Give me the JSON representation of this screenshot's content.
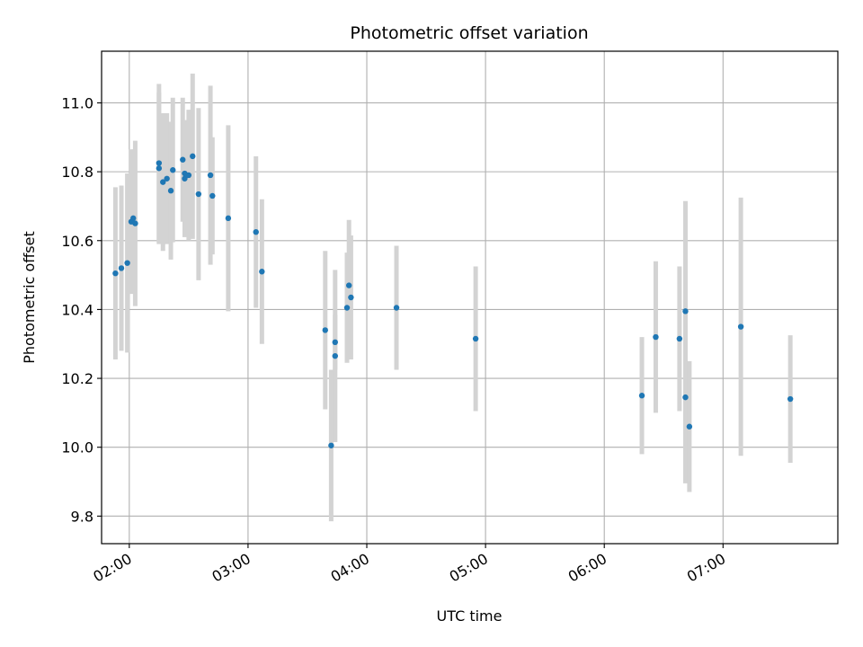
{
  "chart_data": {
    "type": "scatter",
    "title": "Photometric offset variation",
    "xlabel": "UTC time",
    "ylabel": "Photometric offset",
    "x_ticks": [
      "02:00",
      "03:00",
      "04:00",
      "05:00",
      "06:00",
      "07:00"
    ],
    "y_ticks": [
      "9.8",
      "10.0",
      "10.2",
      "10.4",
      "10.6",
      "10.8",
      "11.0"
    ],
    "xlim": [
      "01:46",
      "07:58"
    ],
    "ylim": [
      9.72,
      11.15
    ],
    "grid": true,
    "point_color": "#1f77b4",
    "errorbar_color": "#d3d3d3",
    "points": [
      {
        "x": "01:53",
        "y": 10.505,
        "err": 0.25
      },
      {
        "x": "01:56",
        "y": 10.52,
        "err": 0.24
      },
      {
        "x": "01:59",
        "y": 10.535,
        "err": 0.26
      },
      {
        "x": "02:01",
        "y": 10.655,
        "err": 0.21
      },
      {
        "x": "02:02",
        "y": 10.665,
        "err": 0.2
      },
      {
        "x": "02:03",
        "y": 10.65,
        "err": 0.24
      },
      {
        "x": "02:15",
        "y": 10.81,
        "err": 0.22
      },
      {
        "x": "02:15",
        "y": 10.825,
        "err": 0.23
      },
      {
        "x": "02:17",
        "y": 10.77,
        "err": 0.2
      },
      {
        "x": "02:19",
        "y": 10.78,
        "err": 0.19
      },
      {
        "x": "02:21",
        "y": 10.745,
        "err": 0.2
      },
      {
        "x": "02:22",
        "y": 10.805,
        "err": 0.21
      },
      {
        "x": "02:27",
        "y": 10.835,
        "err": 0.18
      },
      {
        "x": "02:28",
        "y": 10.795,
        "err": 0.14
      },
      {
        "x": "02:28",
        "y": 10.78,
        "err": 0.17
      },
      {
        "x": "02:30",
        "y": 10.79,
        "err": 0.19
      },
      {
        "x": "02:32",
        "y": 10.845,
        "err": 0.24
      },
      {
        "x": "02:35",
        "y": 10.735,
        "err": 0.25
      },
      {
        "x": "02:41",
        "y": 10.79,
        "err": 0.26
      },
      {
        "x": "02:42",
        "y": 10.73,
        "err": 0.17
      },
      {
        "x": "02:50",
        "y": 10.665,
        "err": 0.27
      },
      {
        "x": "03:04",
        "y": 10.625,
        "err": 0.22
      },
      {
        "x": "03:07",
        "y": 10.51,
        "err": 0.21
      },
      {
        "x": "03:39",
        "y": 10.34,
        "err": 0.23
      },
      {
        "x": "03:42",
        "y": 10.005,
        "err": 0.22
      },
      {
        "x": "03:44",
        "y": 10.305,
        "err": 0.08
      },
      {
        "x": "03:44",
        "y": 10.265,
        "err": 0.25
      },
      {
        "x": "03:50",
        "y": 10.405,
        "err": 0.16
      },
      {
        "x": "03:51",
        "y": 10.47,
        "err": 0.19
      },
      {
        "x": "03:52",
        "y": 10.435,
        "err": 0.18
      },
      {
        "x": "04:15",
        "y": 10.405,
        "err": 0.18
      },
      {
        "x": "04:55",
        "y": 10.315,
        "err": 0.21
      },
      {
        "x": "06:19",
        "y": 10.15,
        "err": 0.17
      },
      {
        "x": "06:26",
        "y": 10.32,
        "err": 0.22
      },
      {
        "x": "06:38",
        "y": 10.315,
        "err": 0.21
      },
      {
        "x": "06:41",
        "y": 10.395,
        "err": 0.32
      },
      {
        "x": "06:41",
        "y": 10.145,
        "err": 0.25
      },
      {
        "x": "06:43",
        "y": 10.06,
        "err": 0.19
      },
      {
        "x": "07:09",
        "y": 10.35,
        "err": 0.375
      },
      {
        "x": "07:34",
        "y": 10.14,
        "err": 0.185
      }
    ]
  }
}
